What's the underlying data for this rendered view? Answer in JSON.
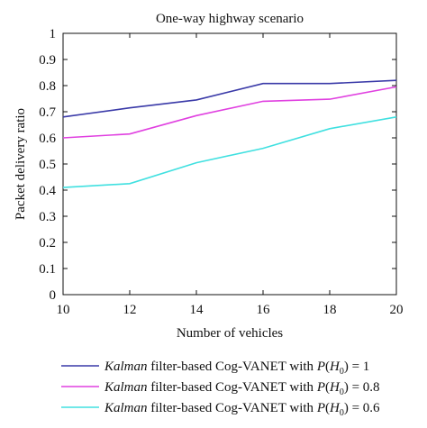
{
  "chart_data": {
    "type": "line",
    "title": "One-way highway scenario",
    "xlabel": "Number of vehicles",
    "ylabel": "Packet delivery ratio",
    "xlim": [
      10,
      20
    ],
    "ylim": [
      0,
      1
    ],
    "xticks": [
      10,
      12,
      14,
      16,
      18,
      20
    ],
    "yticks": [
      0,
      0.1,
      0.2,
      0.3,
      0.4,
      0.5,
      0.6,
      0.7,
      0.8,
      0.9,
      1
    ],
    "ytick_labels": [
      "0",
      "0.1",
      "0.2",
      "0.3",
      "0.4",
      "0.5",
      "0.6",
      "0.7",
      "0.8",
      "0.9",
      "1"
    ],
    "grid": false,
    "legend_position": "bottom",
    "x": [
      10,
      12,
      14,
      16,
      18,
      20
    ],
    "series": [
      {
        "name_italic": "Kalman",
        "name_rest": " filter-based Cog-VANET with ",
        "name_p": "P",
        "name_h": "H",
        "name_sub": "0",
        "name_value": ") = 1",
        "color": "#3a3aa8",
        "values": [
          0.68,
          0.715,
          0.745,
          0.808,
          0.808,
          0.82
        ]
      },
      {
        "name_italic": "Kalman",
        "name_rest": " filter-based Cog-VANET with ",
        "name_p": "P",
        "name_h": "H",
        "name_sub": "0",
        "name_value": ") = 0.8",
        "color": "#e040e0",
        "values": [
          0.6,
          0.615,
          0.685,
          0.74,
          0.748,
          0.795
        ]
      },
      {
        "name_italic": "Kalman",
        "name_rest": " filter-based Cog-VANET with ",
        "name_p": "P",
        "name_h": "H",
        "name_sub": "0",
        "name_value": ") = 0.6",
        "color": "#40e0e0",
        "values": [
          0.41,
          0.425,
          0.505,
          0.56,
          0.635,
          0.68
        ]
      }
    ]
  }
}
